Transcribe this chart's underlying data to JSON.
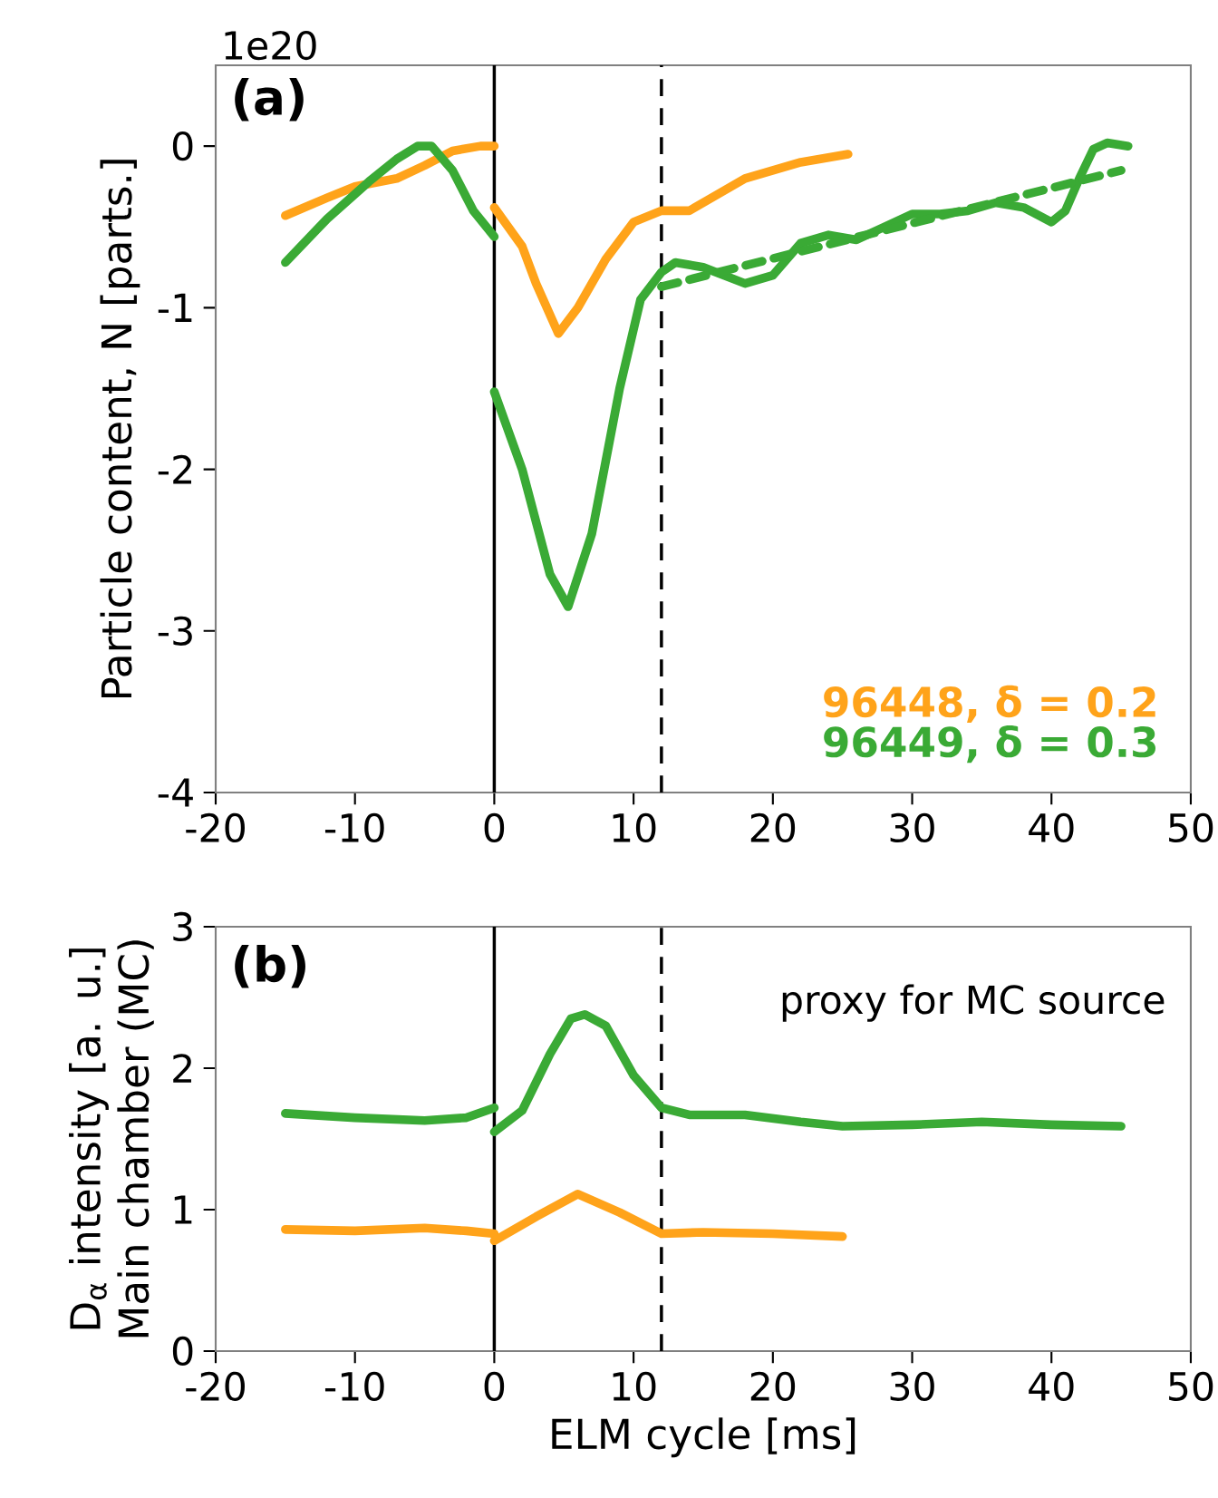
{
  "chart_data": [
    {
      "type": "line",
      "ylabel": "Particle content, N [parts.]",
      "annotations": [
        "1e20",
        "**(a)**"
      ],
      "xlim": [
        -20,
        50
      ],
      "xticks": [
        -20,
        -10,
        0,
        10,
        20,
        30,
        40,
        50
      ],
      "ylim": [
        -4,
        0.5
      ],
      "yticks": [
        -4,
        -3,
        -2,
        -1,
        0
      ],
      "grid": false,
      "legend": "bottom right",
      "marker": "none",
      "line_style": "solid",
      "ref_lines": [
        {
          "axis": "x",
          "value": 0,
          "color": "#000000",
          "line_style": "solid"
        },
        {
          "axis": "x",
          "value": 12,
          "color": "#000000",
          "line_style": "dashed"
        }
      ],
      "series": [
        {
          "name": "96448, δ = 0.2",
          "color": "#ffa31a",
          "x": [
            -15,
            -12,
            -10,
            -7,
            -5,
            -3,
            -1,
            0
          ],
          "values": [
            -0.43,
            -0.32,
            -0.25,
            -0.2,
            -0.12,
            -0.03,
            0,
            0
          ]
        },
        {
          "color": "#ffa31a",
          "x": [
            0,
            2,
            3,
            4.6,
            6,
            8,
            10,
            12,
            14,
            16,
            18,
            20,
            22,
            25.4
          ],
          "values": [
            -0.38,
            -0.62,
            -0.85,
            -1.16,
            -1.0,
            -0.7,
            -0.47,
            -0.4,
            -0.4,
            -0.3,
            -0.2,
            -0.15,
            -0.1,
            -0.05
          ]
        },
        {
          "name": "96449, δ = 0.3",
          "color": "#3aaa35",
          "x": [
            -15,
            -12,
            -9,
            -7,
            -5.5,
            -4.5,
            -3,
            -1.5,
            0
          ],
          "values": [
            -0.72,
            -0.45,
            -0.22,
            -0.08,
            0,
            0,
            -0.15,
            -0.4,
            -0.56
          ]
        },
        {
          "color": "#3aaa35",
          "x": [
            0,
            2,
            4,
            5.3,
            7,
            9,
            10.5,
            12,
            13,
            15,
            18,
            20,
            22,
            24,
            26,
            28,
            30,
            32,
            34,
            36,
            38,
            40,
            41,
            42,
            43,
            44,
            45.5
          ],
          "values": [
            -1.52,
            -2.0,
            -2.65,
            -2.85,
            -2.4,
            -1.5,
            -0.95,
            -0.78,
            -0.72,
            -0.75,
            -0.85,
            -0.8,
            -0.6,
            -0.55,
            -0.58,
            -0.5,
            -0.42,
            -0.42,
            -0.4,
            -0.35,
            -0.38,
            -0.47,
            -0.4,
            -0.2,
            -0.02,
            0.02,
            0.0
          ]
        },
        {
          "type": "line",
          "color": "#3aaa35",
          "line_style": "dashed",
          "x": [
            12,
            45
          ],
          "values": [
            -0.87,
            -0.15
          ]
        }
      ]
    },
    {
      "type": "line",
      "xlabel": "ELM cycle [ms]",
      "ylabel": "D$_{α}$ intensity [a. u.] Main chamber (MC)",
      "annotations": [
        "**(b)**",
        "proxy for MC source"
      ],
      "xlim": [
        -20,
        50
      ],
      "xticks": [
        -20,
        -10,
        0,
        10,
        20,
        30,
        40,
        50
      ],
      "ylim": [
        0,
        3
      ],
      "yticks": [
        0,
        1,
        2,
        3
      ],
      "grid": false,
      "marker": "none",
      "line_style": "solid",
      "ref_lines": [
        {
          "axis": "x",
          "value": 0,
          "color": "#000000",
          "line_style": "solid"
        },
        {
          "axis": "x",
          "value": 12,
          "color": "#000000",
          "line_style": "dashed"
        }
      ],
      "series": [
        {
          "color": "#3aaa35",
          "x": [
            -15,
            -10,
            -5,
            -2,
            0
          ],
          "values": [
            1.68,
            1.65,
            1.63,
            1.65,
            1.72
          ]
        },
        {
          "color": "#3aaa35",
          "x": [
            0,
            2,
            4,
            5.5,
            6.5,
            8,
            10,
            12,
            14,
            18,
            22,
            25,
            30,
            35,
            40,
            45
          ],
          "values": [
            1.55,
            1.7,
            2.1,
            2.35,
            2.38,
            2.3,
            1.95,
            1.72,
            1.67,
            1.67,
            1.62,
            1.59,
            1.6,
            1.62,
            1.6,
            1.59
          ]
        },
        {
          "color": "#ffa31a",
          "x": [
            -15,
            -10,
            -5,
            -2,
            0
          ],
          "values": [
            0.86,
            0.85,
            0.87,
            0.85,
            0.83
          ]
        },
        {
          "color": "#ffa31a",
          "x": [
            0,
            3,
            6,
            9,
            12,
            15,
            20,
            25
          ],
          "values": [
            0.78,
            0.95,
            1.11,
            0.98,
            0.83,
            0.84,
            0.83,
            0.81
          ]
        }
      ]
    }
  ]
}
